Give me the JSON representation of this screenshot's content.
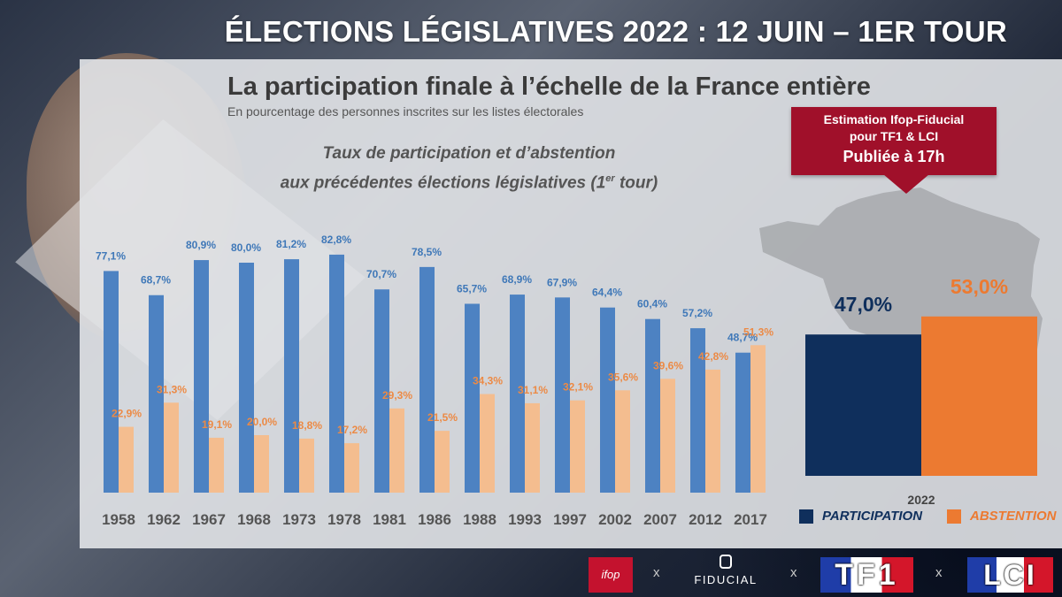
{
  "header": {
    "title": "ÉLECTIONS LÉGISLATIVES 2022 : 12 JUIN – 1ER TOUR"
  },
  "main": {
    "title": "La participation finale à l’échelle de la France entière",
    "subtitle": "En pourcentage des personnes inscrites sur les listes électorales"
  },
  "history_title": {
    "line1": "Taux de participation et d’abstention",
    "line2": "aux précédentes élections législatives (1",
    "sup": "er",
    "line2_end": " tour)"
  },
  "estimate": {
    "line1": "Estimation Ifop-Fiducial",
    "line2": "pour TF1 & LCI",
    "line3": "Publiée à 17h"
  },
  "legend": {
    "participation": "PARTICIPATION",
    "abstention": "ABSTENTION"
  },
  "colors": {
    "hist_participation": "#4d82c2",
    "hist_abstention": "#f4bd8f",
    "hist_part_label": "#3f78b8",
    "hist_abs_label": "#ec8a45",
    "est_participation": "#0f2f5c",
    "est_abstention": "#ec7a31"
  },
  "logos": {
    "ifop": "ifop",
    "fiducial": "FIDUCIAL",
    "tf1": "TF1",
    "lci": "LCI",
    "separator": "x"
  },
  "chart_data": [
    {
      "type": "bar",
      "categories": [
        "1958",
        "1962",
        "1967",
        "1968",
        "1973",
        "1978",
        "1981",
        "1986",
        "1988",
        "1993",
        "1997",
        "2002",
        "2007",
        "2012",
        "2017"
      ],
      "series": [
        {
          "name": "PARTICIPATION",
          "values": [
            77.1,
            68.7,
            80.9,
            80.0,
            81.2,
            82.8,
            70.7,
            78.5,
            65.7,
            68.9,
            67.9,
            64.4,
            60.4,
            57.2,
            48.7
          ],
          "labels": [
            "77,1%",
            "68,7%",
            "80,9%",
            "80,0%",
            "81,2%",
            "82,8%",
            "70,7%",
            "78,5%",
            "65,7%",
            "68,9%",
            "67,9%",
            "64,4%",
            "60,4%",
            "57,2%",
            "48,7%"
          ]
        },
        {
          "name": "ABSTENTION",
          "values": [
            22.9,
            31.3,
            19.1,
            20.0,
            18.8,
            17.2,
            29.3,
            21.5,
            34.3,
            31.1,
            32.1,
            35.6,
            39.6,
            42.8,
            51.3
          ],
          "labels": [
            "22,9%",
            "31,3%",
            "19,1%",
            "20,0%",
            "18,8%",
            "17,2%",
            "29,3%",
            "21,5%",
            "34,3%",
            "31,1%",
            "32,1%",
            "35,6%",
            "39,6%",
            "42,8%",
            "51,3%"
          ]
        }
      ],
      "ylim": [
        0,
        100
      ],
      "grid": false
    },
    {
      "type": "bar",
      "categories": [
        "2022"
      ],
      "series": [
        {
          "name": "PARTICIPATION",
          "values": [
            47.0
          ],
          "labels": [
            "47,0%"
          ]
        },
        {
          "name": "ABSTENTION",
          "values": [
            53.0
          ],
          "labels": [
            "53,0%"
          ]
        }
      ],
      "ylim": [
        0,
        100
      ],
      "legend": "bottom"
    }
  ]
}
